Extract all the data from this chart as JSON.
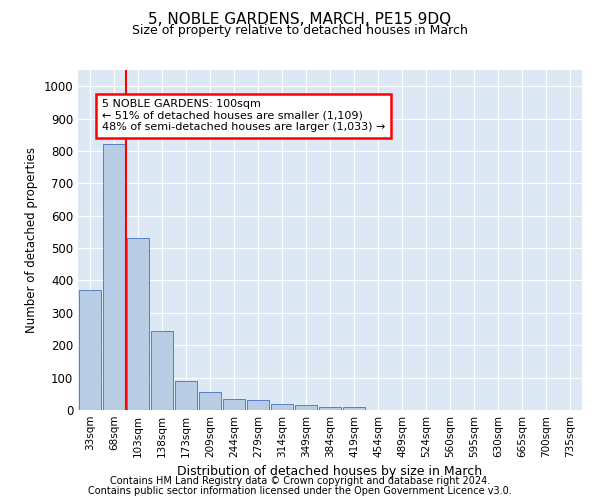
{
  "title": "5, NOBLE GARDENS, MARCH, PE15 9DQ",
  "subtitle": "Size of property relative to detached houses in March",
  "xlabel": "Distribution of detached houses by size in March",
  "ylabel": "Number of detached properties",
  "annotation_title": "5 NOBLE GARDENS: 100sqm",
  "annotation_line1": "← 51% of detached houses are smaller (1,109)",
  "annotation_line2": "48% of semi-detached houses are larger (1,033) →",
  "bin_labels": [
    "33sqm",
    "68sqm",
    "103sqm",
    "138sqm",
    "173sqm",
    "209sqm",
    "244sqm",
    "279sqm",
    "314sqm",
    "349sqm",
    "384sqm",
    "419sqm",
    "454sqm",
    "489sqm",
    "524sqm",
    "560sqm",
    "595sqm",
    "630sqm",
    "665sqm",
    "700sqm",
    "735sqm"
  ],
  "bar_values": [
    370,
    820,
    530,
    245,
    90,
    55,
    35,
    30,
    20,
    15,
    10,
    10,
    0,
    0,
    0,
    0,
    0,
    0,
    0,
    0,
    0
  ],
  "bar_color": "#b8cce4",
  "bar_edge_color": "#4472c4",
  "vline_color": "red",
  "vline_x": 1.5,
  "annotation_box_color": "red",
  "ylim": [
    0,
    1050
  ],
  "yticks": [
    0,
    100,
    200,
    300,
    400,
    500,
    600,
    700,
    800,
    900,
    1000
  ],
  "background_color": "#dde8f5",
  "footer_line1": "Contains HM Land Registry data © Crown copyright and database right 2024.",
  "footer_line2": "Contains public sector information licensed under the Open Government Licence v3.0."
}
